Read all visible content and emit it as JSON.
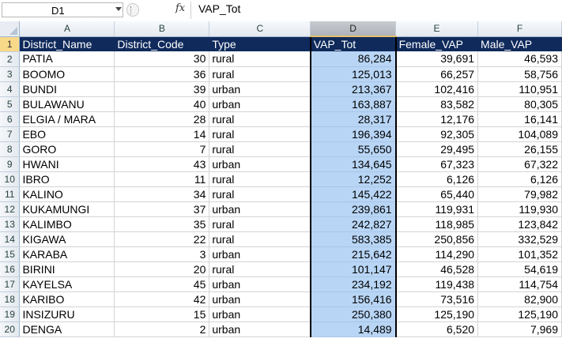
{
  "formula_bar": {
    "name_box": "D1",
    "fx_symbol": "fx",
    "formula": "VAP_Tot"
  },
  "columns": [
    "A",
    "B",
    "C",
    "D",
    "E",
    "F"
  ],
  "selected_column": "D",
  "header_row": {
    "row_number": "1",
    "cells": [
      "District_Name",
      "District_Code",
      "Type",
      "VAP_Tot",
      "Female_VAP",
      "Male_VAP"
    ]
  },
  "rows": [
    {
      "n": "2",
      "name": "PATIA",
      "code": "30",
      "type": "rural",
      "vap": "86,284",
      "female": "39,691",
      "male": "46,593"
    },
    {
      "n": "3",
      "name": "BOOMO",
      "code": "36",
      "type": "rural",
      "vap": "125,013",
      "female": "66,257",
      "male": "58,756"
    },
    {
      "n": "4",
      "name": "BUNDI",
      "code": "39",
      "type": "urban",
      "vap": "213,367",
      "female": "102,416",
      "male": "110,951"
    },
    {
      "n": "5",
      "name": "BULAWANU",
      "code": "40",
      "type": "urban",
      "vap": "163,887",
      "female": "83,582",
      "male": "80,305"
    },
    {
      "n": "6",
      "name": "ELGIA / MARA",
      "code": "28",
      "type": "rural",
      "vap": "28,317",
      "female": "12,176",
      "male": "16,141"
    },
    {
      "n": "7",
      "name": "EBO",
      "code": "14",
      "type": "rural",
      "vap": "196,394",
      "female": "92,305",
      "male": "104,089"
    },
    {
      "n": "8",
      "name": "GORO",
      "code": "7",
      "type": "rural",
      "vap": "55,650",
      "female": "29,495",
      "male": "26,155"
    },
    {
      "n": "9",
      "name": "HWANI",
      "code": "43",
      "type": "urban",
      "vap": "134,645",
      "female": "67,323",
      "male": "67,322"
    },
    {
      "n": "10",
      "name": "IBRO",
      "code": "11",
      "type": "rural",
      "vap": "12,252",
      "female": "6,126",
      "male": "6,126"
    },
    {
      "n": "11",
      "name": "KALINO",
      "code": "34",
      "type": "rural",
      "vap": "145,422",
      "female": "65,440",
      "male": "79,982"
    },
    {
      "n": "12",
      "name": "KUKAMUNGI",
      "code": "37",
      "type": "urban",
      "vap": "239,861",
      "female": "119,931",
      "male": "119,930"
    },
    {
      "n": "13",
      "name": "KALIMBO",
      "code": "35",
      "type": "rural",
      "vap": "242,827",
      "female": "118,985",
      "male": "123,842"
    },
    {
      "n": "14",
      "name": "KIGAWA",
      "code": "22",
      "type": "rural",
      "vap": "583,385",
      "female": "250,856",
      "male": "332,529"
    },
    {
      "n": "15",
      "name": "KARABA",
      "code": "3",
      "type": "urban",
      "vap": "215,642",
      "female": "114,290",
      "male": "101,352"
    },
    {
      "n": "16",
      "name": "BIRINI",
      "code": "20",
      "type": "rural",
      "vap": "101,147",
      "female": "46,528",
      "male": "54,619"
    },
    {
      "n": "17",
      "name": "KAYELSA",
      "code": "45",
      "type": "urban",
      "vap": "234,192",
      "female": "119,438",
      "male": "114,754"
    },
    {
      "n": "18",
      "name": "KARIBO",
      "code": "42",
      "type": "urban",
      "vap": "156,416",
      "female": "73,516",
      "male": "82,900"
    },
    {
      "n": "19",
      "name": "INSIZURU",
      "code": "15",
      "type": "urban",
      "vap": "250,380",
      "female": "125,190",
      "male": "125,190"
    },
    {
      "n": "20",
      "name": "DENGA",
      "code": "2",
      "type": "urban",
      "vap": "14,489",
      "female": "6,520",
      "male": "7,969"
    }
  ],
  "colors": {
    "header_fill": "#0f2a5b",
    "selection_fill": "#b8d5f5",
    "row_header_selected": "#f8d98a"
  },
  "icons": [
    "dropdown-arrow-icon",
    "function-icon",
    "corner-select-all-icon"
  ]
}
